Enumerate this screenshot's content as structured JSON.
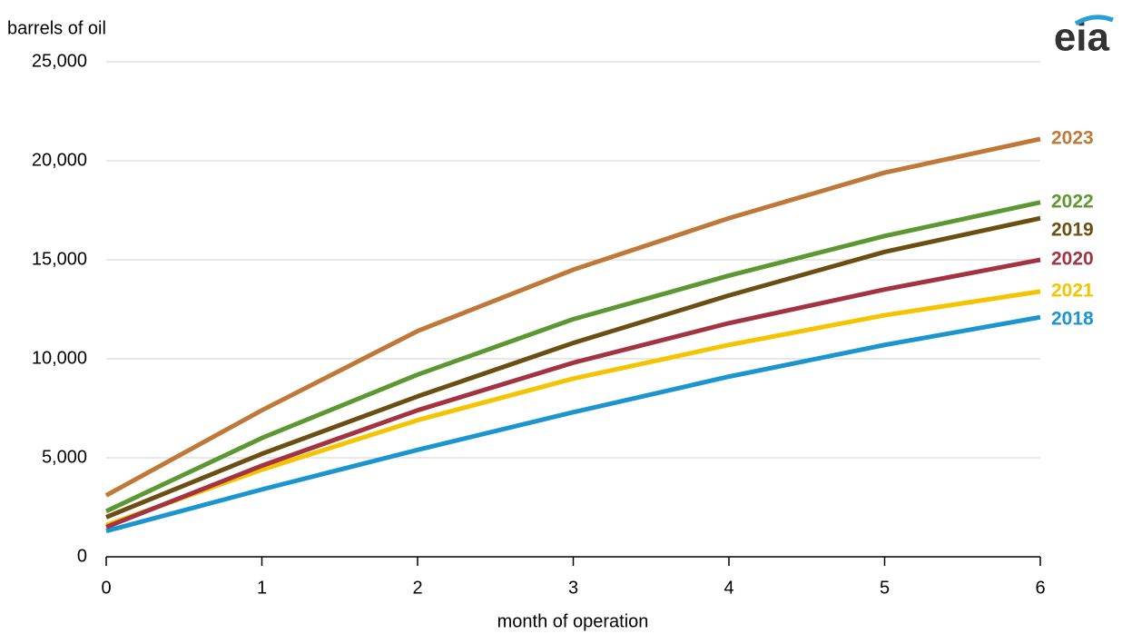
{
  "chart_data": {
    "type": "line",
    "y_label": "barrels of oil",
    "x_label": "month of operation",
    "logo": "eia",
    "x": [
      0,
      1,
      2,
      3,
      4,
      5,
      6
    ],
    "xlim": [
      0,
      6
    ],
    "xticks": [
      0,
      1,
      2,
      3,
      4,
      5,
      6
    ],
    "ylim": [
      0,
      25000
    ],
    "yticks": [
      0,
      {
        "value": 5000,
        "label": "5,000"
      },
      {
        "value": 10000,
        "label": "10,000"
      },
      {
        "value": 15000,
        "label": "15,000"
      },
      {
        "value": 20000,
        "label": "20,000"
      },
      {
        "value": 25000,
        "label": "25,000"
      }
    ],
    "grid": true,
    "series": [
      {
        "name": "2018",
        "color": "#1a95d0",
        "values": [
          1300,
          3400,
          5400,
          7300,
          9100,
          10700,
          12100
        ]
      },
      {
        "name": "2021",
        "color": "#f5c400",
        "values": [
          1600,
          4400,
          6900,
          9000,
          10700,
          12200,
          13400
        ]
      },
      {
        "name": "2020",
        "color": "#a33340",
        "values": [
          1500,
          4600,
          7400,
          9800,
          11800,
          13500,
          15000
        ]
      },
      {
        "name": "2019",
        "color": "#6b4f12",
        "values": [
          2000,
          5200,
          8100,
          10800,
          13200,
          15400,
          17100
        ]
      },
      {
        "name": "2022",
        "color": "#5d9732",
        "values": [
          2300,
          6000,
          9200,
          12000,
          14200,
          16200,
          17900
        ]
      },
      {
        "name": "2023",
        "color": "#c07838",
        "values": [
          3100,
          7400,
          11400,
          14500,
          17100,
          19400,
          21100
        ]
      }
    ]
  }
}
